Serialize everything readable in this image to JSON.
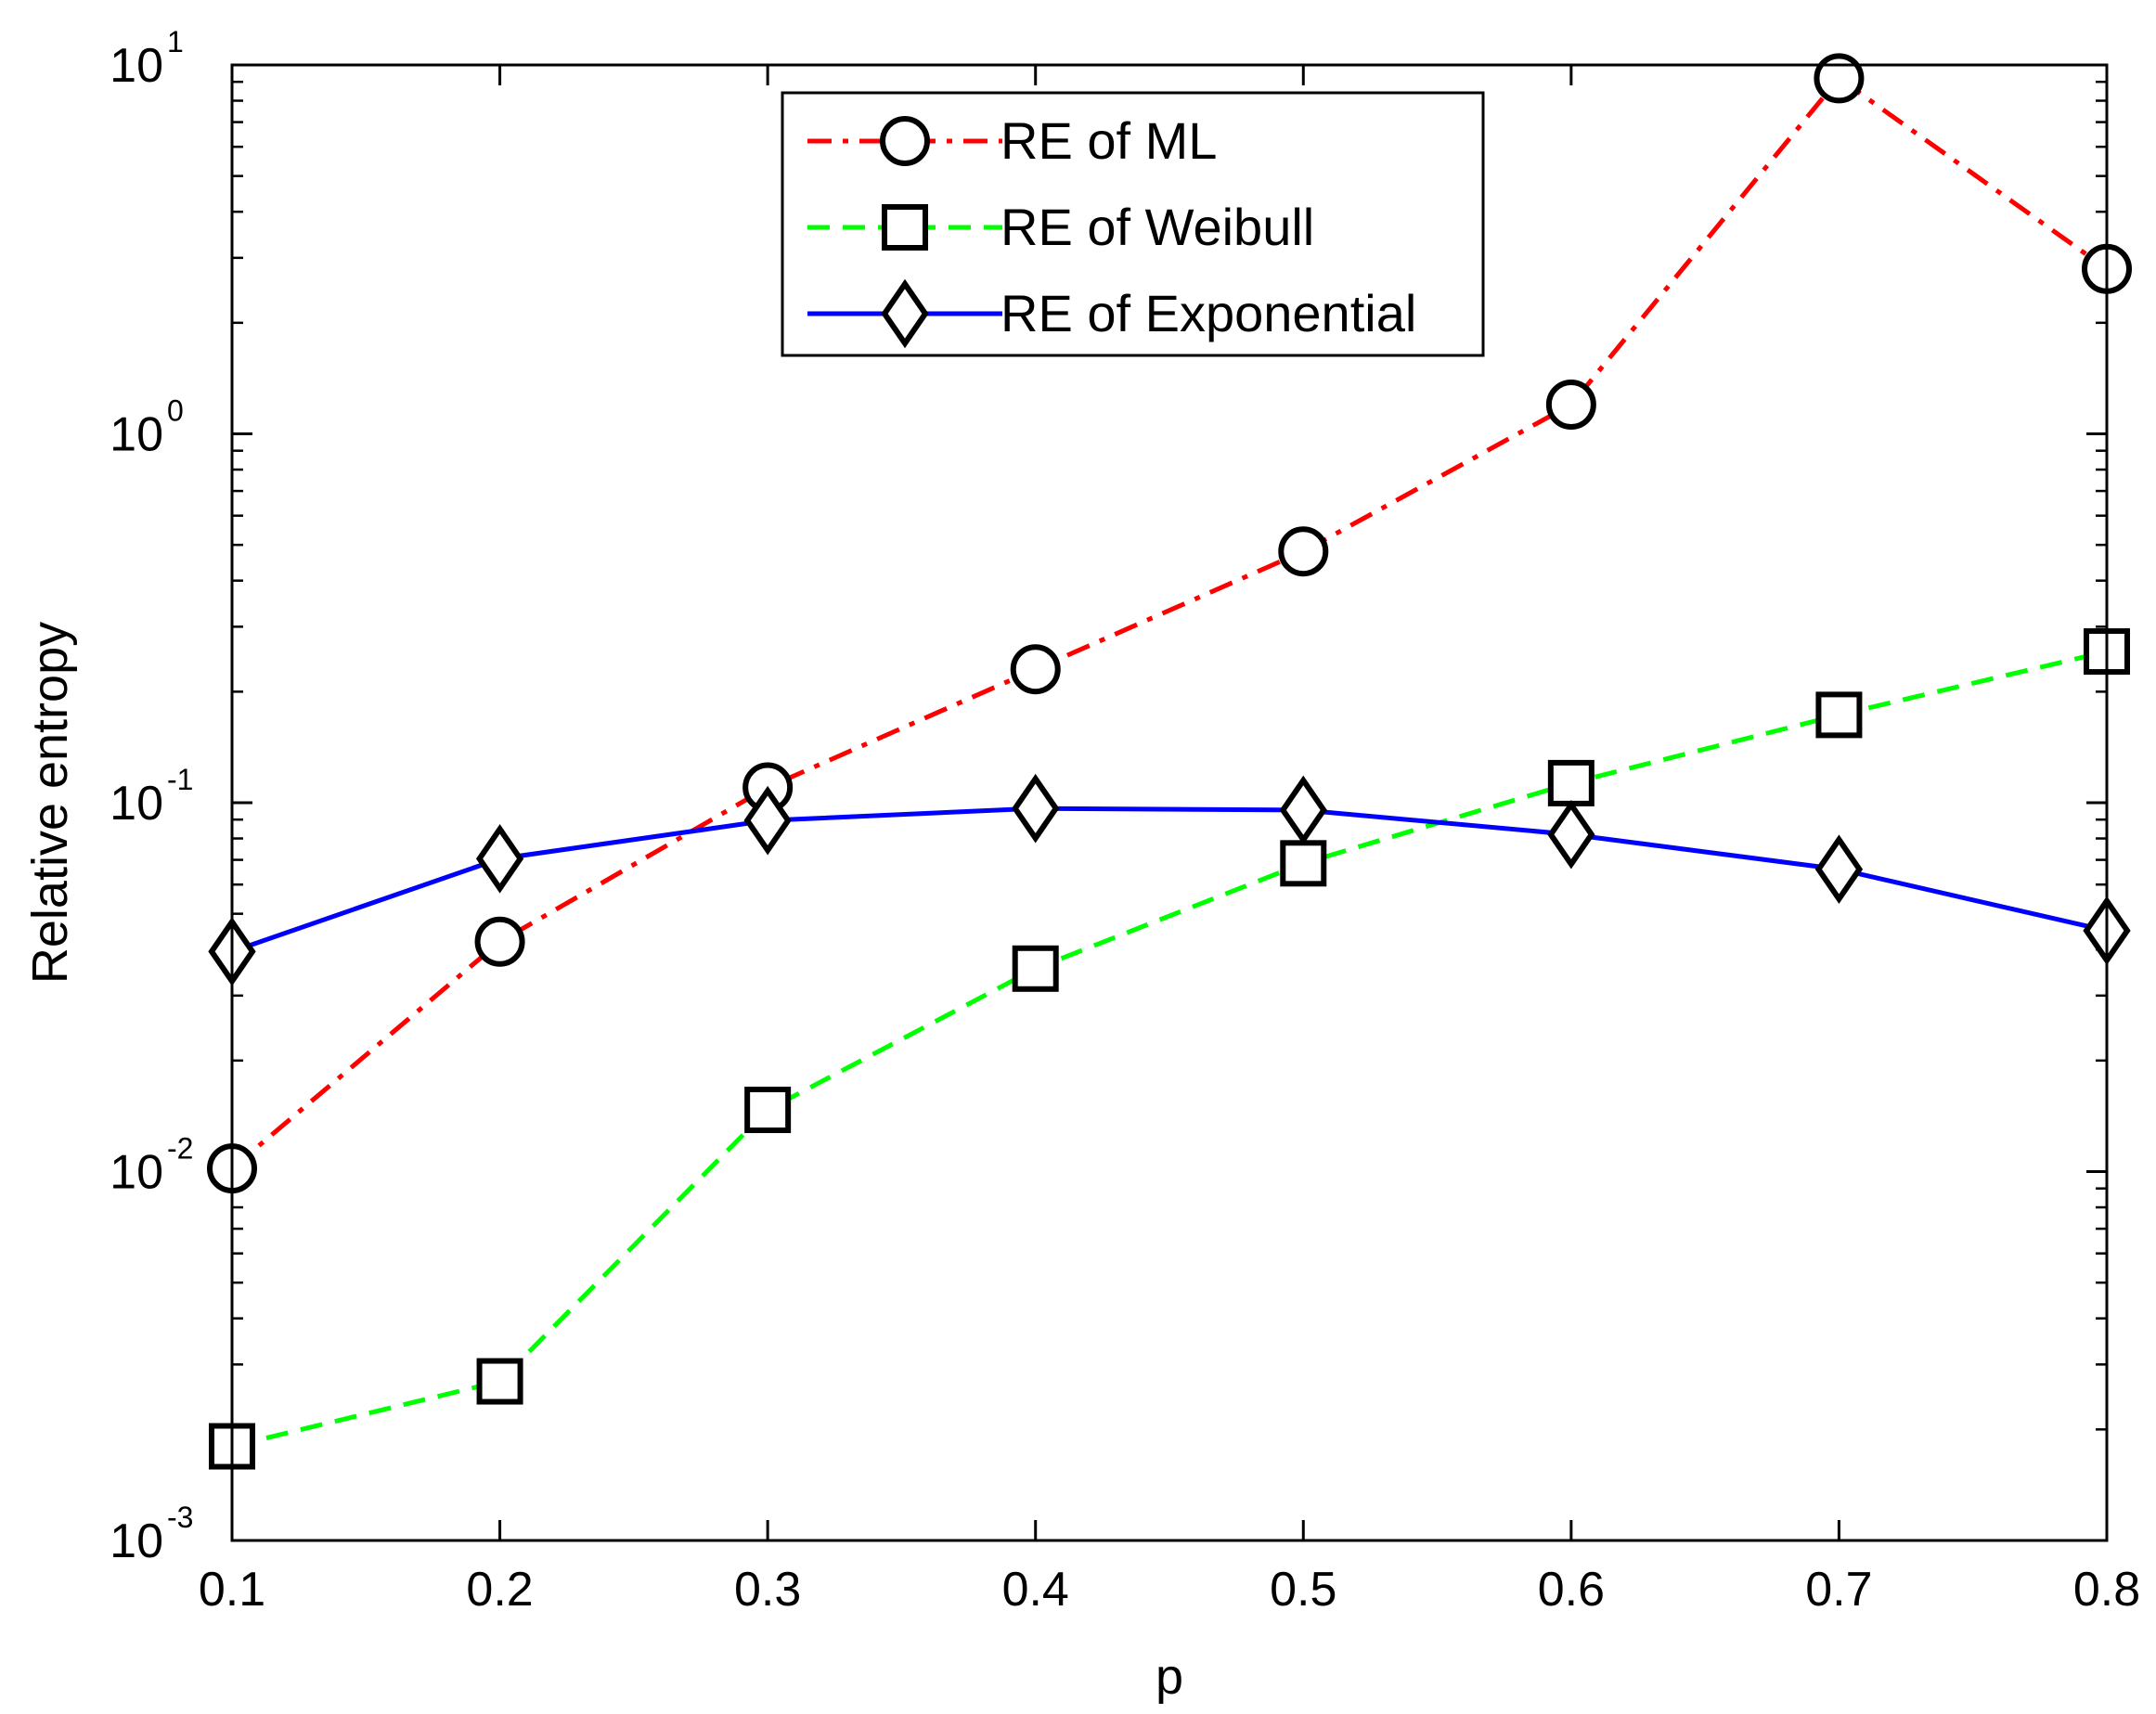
{
  "chart_data": {
    "type": "line",
    "xlabel": "p",
    "ylabel": "Relative entropy",
    "x": [
      0.1,
      0.2,
      0.3,
      0.4,
      0.5,
      0.6,
      0.7,
      0.8
    ],
    "x_ticks": [
      "0.1",
      "0.2",
      "0.3",
      "0.4",
      "0.5",
      "0.6",
      "0.7",
      "0.8"
    ],
    "xlim": [
      0.1,
      0.8
    ],
    "y_scale": "log",
    "ylim": [
      0.001,
      10
    ],
    "y_ticks": [
      {
        "base": "10",
        "exp": "-3"
      },
      {
        "base": "10",
        "exp": "-2"
      },
      {
        "base": "10",
        "exp": "-1"
      },
      {
        "base": "10",
        "exp": "0"
      },
      {
        "base": "10",
        "exp": "1"
      }
    ],
    "grid": false,
    "legend_position": "top-center",
    "series": [
      {
        "name": "RE of ML",
        "color": "#ff0000",
        "line_style": "dash-dot",
        "marker": "circle",
        "values": [
          0.0102,
          0.042,
          0.11,
          0.23,
          0.48,
          1.2,
          9.2,
          2.8
        ]
      },
      {
        "name": "RE of Weibull",
        "color": "#00ff00",
        "line_style": "dashed",
        "marker": "square",
        "values": [
          0.0018,
          0.0027,
          0.0147,
          0.0355,
          0.0685,
          0.113,
          0.173,
          0.257
        ]
      },
      {
        "name": "RE of Exponential",
        "color": "#0000ff",
        "line_style": "solid",
        "marker": "diamond",
        "values": [
          0.0395,
          0.0705,
          0.0895,
          0.0965,
          0.0955,
          0.082,
          0.066,
          0.045
        ]
      }
    ]
  }
}
